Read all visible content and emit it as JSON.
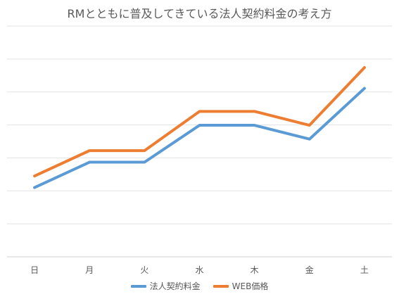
{
  "chart_data": {
    "type": "line",
    "title": "RMとともに普及してきている法人契約料金の考え方",
    "categories": [
      "日",
      "月",
      "火",
      "水",
      "木",
      "金",
      "土"
    ],
    "series": [
      {
        "name": "法人契約料金",
        "color": "#5B9BD5",
        "values": [
          3.0,
          4.1,
          4.1,
          5.7,
          5.7,
          5.1,
          7.3
        ]
      },
      {
        "name": "WEB価格",
        "color": "#ED7D31",
        "values": [
          3.5,
          4.6,
          4.6,
          6.3,
          6.3,
          5.7,
          8.2
        ]
      }
    ],
    "ylim": [
      0,
      10
    ],
    "grid": true,
    "legend_position": "bottom"
  }
}
